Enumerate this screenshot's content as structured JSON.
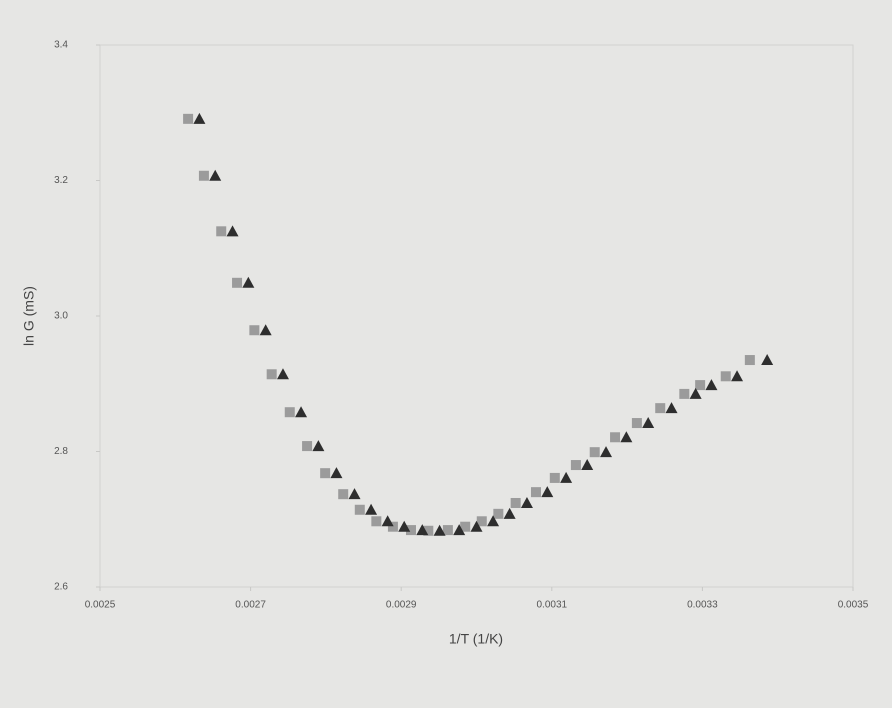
{
  "chart_data": {
    "type": "scatter",
    "x_label": "1/T (1/K)",
    "y_label": "ln G (mS)",
    "xlim": [
      0.0025,
      0.0035
    ],
    "xticks": [
      0.0025,
      0.0027,
      0.0029,
      0.0031,
      0.0033,
      0.0035
    ],
    "ylim": [
      2.6,
      3.4
    ],
    "yticks": [
      2.6,
      2.8,
      {
        "value": 3,
        "label": "3.0"
      },
      3.2,
      3.4
    ],
    "grid": false,
    "series": [
      {
        "color": "#9b9b9b",
        "marker": "square",
        "x": [
          0.002617,
          0.002638,
          0.002661,
          0.002682,
          0.002705,
          0.002728,
          0.002752,
          0.002775,
          0.002799,
          0.002823,
          0.002845,
          0.002867,
          0.002889,
          0.002913,
          0.002936,
          0.002962,
          0.002985,
          0.003007,
          0.003029,
          0.003052,
          0.003079,
          0.003104,
          0.003132,
          0.003157,
          0.003184,
          0.003213,
          0.003244,
          0.003276,
          0.003297,
          0.003331,
          0.003363
        ],
        "values": [
          3.291,
          3.207,
          3.125,
          3.049,
          2.979,
          2.914,
          2.858,
          2.808,
          2.768,
          2.737,
          2.714,
          2.697,
          2.689,
          2.684,
          2.683,
          2.684,
          2.689,
          2.697,
          2.708,
          2.724,
          2.74,
          2.761,
          2.78,
          2.799,
          2.821,
          2.842,
          2.864,
          2.885,
          2.898,
          2.911,
          2.935
        ]
      },
      {
        "color": "#2e2e2e",
        "marker": "triangle",
        "x": [
          0.002632,
          0.002653,
          0.002676,
          0.002697,
          0.00272,
          0.002743,
          0.002767,
          0.00279,
          0.002814,
          0.002838,
          0.00286,
          0.002882,
          0.002904,
          0.002928,
          0.002951,
          0.002977,
          0.003,
          0.003022,
          0.003044,
          0.003067,
          0.003094,
          0.003119,
          0.003147,
          0.003172,
          0.003199,
          0.003228,
          0.003259,
          0.003291,
          0.003312,
          0.003346,
          0.003386
        ],
        "values": [
          3.291,
          3.207,
          3.125,
          3.049,
          2.979,
          2.914,
          2.858,
          2.808,
          2.768,
          2.737,
          2.714,
          2.697,
          2.689,
          2.684,
          2.683,
          2.684,
          2.689,
          2.697,
          2.708,
          2.724,
          2.74,
          2.761,
          2.78,
          2.799,
          2.821,
          2.842,
          2.864,
          2.885,
          2.898,
          2.911,
          2.935
        ]
      }
    ]
  }
}
